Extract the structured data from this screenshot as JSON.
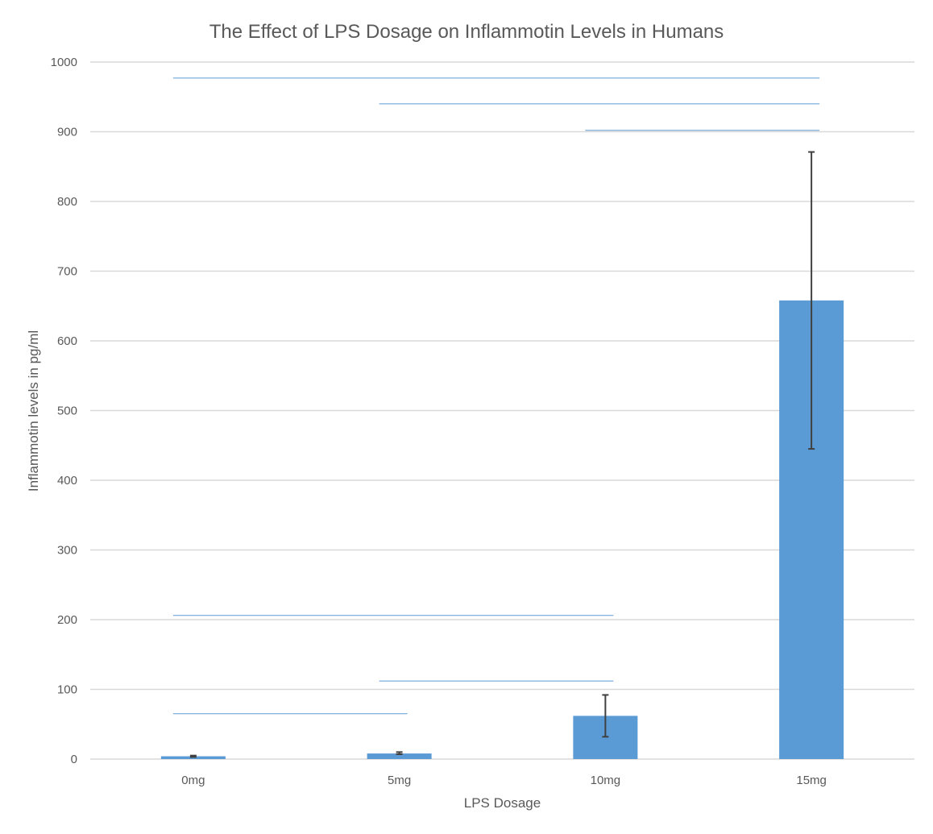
{
  "chart_data": {
    "type": "bar",
    "title": "The Effect of LPS Dosage on Inflammotin Levels in Humans",
    "xlabel": "LPS Dosage",
    "ylabel": "Inflammotin levels in pg/ml",
    "categories": [
      "0mg",
      "5mg",
      "10mg",
      "15mg"
    ],
    "values": [
      4,
      8,
      62,
      658
    ],
    "error": [
      {
        "low": 3,
        "high": 5
      },
      {
        "low": 7,
        "high": 10
      },
      {
        "low": 32,
        "high": 92
      },
      {
        "low": 445,
        "high": 871
      }
    ],
    "ylim": [
      0,
      1000
    ],
    "yticks": [
      0,
      100,
      200,
      300,
      400,
      500,
      600,
      700,
      800,
      900,
      1000
    ],
    "grid": true,
    "legend": "none",
    "comparison_brackets": [
      {
        "from": "0mg",
        "to": "15mg",
        "y": 977
      },
      {
        "from": "5mg",
        "to": "15mg",
        "y": 940
      },
      {
        "from": "10mg",
        "to": "15mg",
        "y": 902
      },
      {
        "from": "0mg",
        "to": "10mg",
        "y": 206
      },
      {
        "from": "5mg",
        "to": "10mg",
        "y": 112
      },
      {
        "from": "0mg",
        "to": "5mg",
        "y": 65
      }
    ],
    "colors": {
      "bar": "#5b9bd5",
      "bracket": "#5b9bd5",
      "error": "#404040",
      "grid": "#d9d9d9",
      "text": "#595959"
    }
  }
}
